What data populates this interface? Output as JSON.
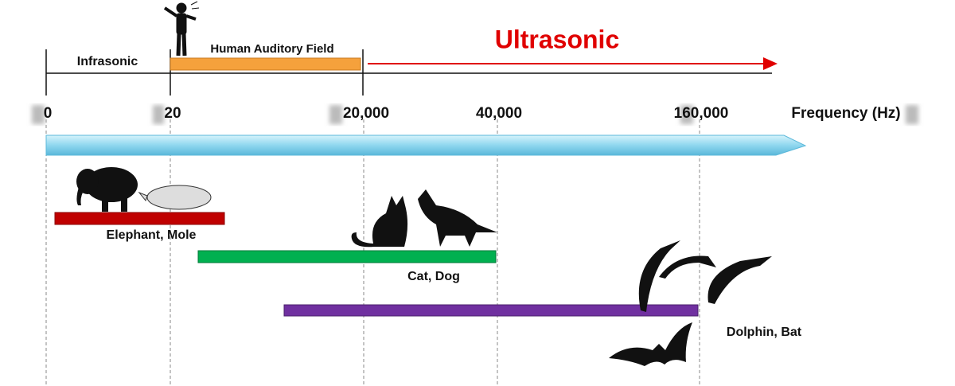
{
  "header": {
    "regions": [
      "Infrasonic",
      "Human Auditory Field",
      "Ultrasonic"
    ]
  },
  "axis": {
    "ticks": [
      "0",
      "20",
      "20,000",
      "40,000",
      "160,000"
    ],
    "label": "Frequency (Hz)"
  },
  "ranges": [
    {
      "label": "Elephant, Mole"
    },
    {
      "label": "Cat, Dog"
    },
    {
      "label": "Dolphin, Bat"
    }
  ]
}
